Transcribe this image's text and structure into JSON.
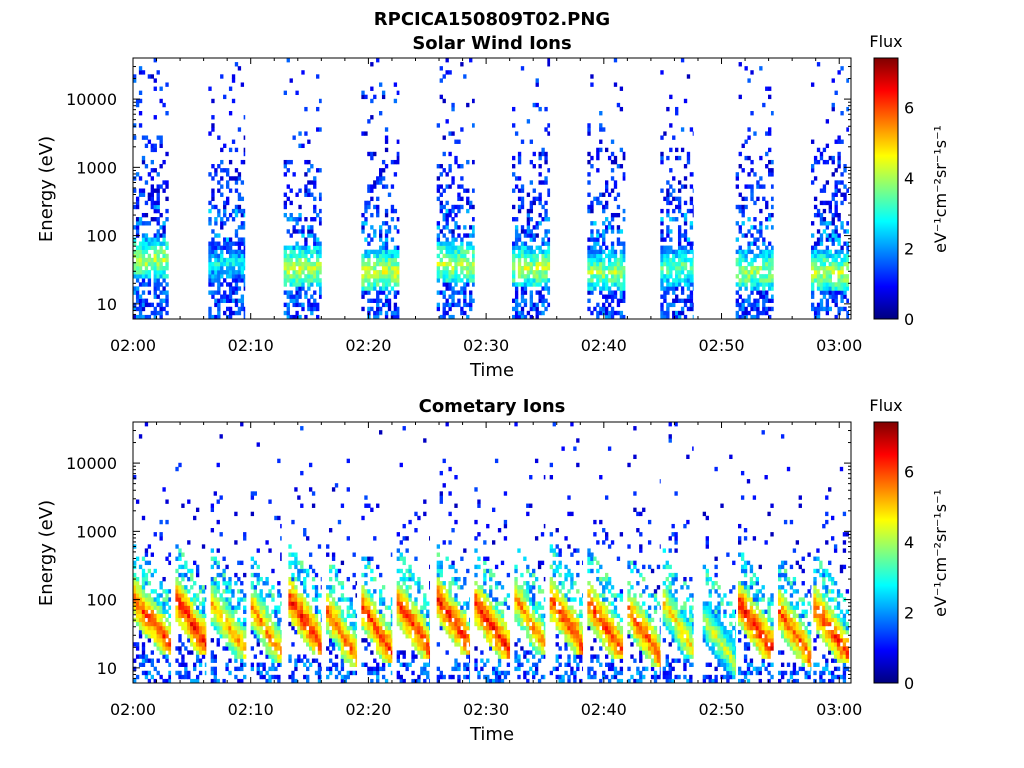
{
  "figure_title": "RPCICA150809T02.PNG",
  "panels": [
    {
      "title": "Solar Wind Ions",
      "xlabel": "Time",
      "ylabel": "Energy (eV)",
      "colorbar": {
        "label_top": "Flux",
        "unit": "eV⁻¹cm⁻²sr⁻¹s⁻¹",
        "ticks": [
          "0",
          "2",
          "4",
          "6"
        ]
      }
    },
    {
      "title": "Cometary Ions",
      "xlabel": "Time",
      "ylabel": "Energy (eV)",
      "colorbar": {
        "label_top": "Flux",
        "unit": "eV⁻¹cm⁻²sr⁻¹s⁻¹",
        "ticks": [
          "0",
          "2",
          "4",
          "6"
        ]
      }
    }
  ],
  "colormap": "jet",
  "chart_data": [
    {
      "type": "heatmap",
      "title": "Solar Wind Ions",
      "xlabel": "Time",
      "ylabel": "Energy (eV)",
      "x_ticks": [
        "02:00",
        "02:10",
        "02:20",
        "02:30",
        "02:40",
        "02:50",
        "03:00"
      ],
      "x_tick_minutes": [
        0,
        10,
        20,
        30,
        40,
        50,
        60
      ],
      "xlim_minutes": [
        0,
        61
      ],
      "y_ticks": [
        "10",
        "100",
        "1000",
        "10000"
      ],
      "y_tick_values": [
        10,
        100,
        1000,
        10000
      ],
      "y_scale": "log",
      "ylim": [
        6,
        40000
      ],
      "clim": [
        0,
        7.4
      ],
      "colorbar_ticks": [
        0,
        2,
        4,
        6
      ],
      "colorbar_label": "eV⁻¹cm⁻²sr⁻¹s⁻¹",
      "bursts": [
        {
          "start_min": 0.0,
          "end_min": 3.0,
          "peak_min": 1.5,
          "peak_energy_ev": 45,
          "peak_flux": 4.8
        },
        {
          "start_min": 6.4,
          "end_min": 9.5,
          "peak_min": 8.5,
          "peak_energy_ev": 40,
          "peak_flux": 3.5
        },
        {
          "start_min": 12.8,
          "end_min": 16.0,
          "peak_min": 15.0,
          "peak_energy_ev": 35,
          "peak_flux": 4.8
        },
        {
          "start_min": 19.4,
          "end_min": 22.6,
          "peak_min": 21.5,
          "peak_energy_ev": 30,
          "peak_flux": 4.9
        },
        {
          "start_min": 25.8,
          "end_min": 29.0,
          "peak_min": 27.5,
          "peak_energy_ev": 40,
          "peak_flux": 4.8
        },
        {
          "start_min": 32.2,
          "end_min": 35.4,
          "peak_min": 34.0,
          "peak_energy_ev": 35,
          "peak_flux": 4.8
        },
        {
          "start_min": 38.6,
          "end_min": 41.8,
          "peak_min": 40.5,
          "peak_energy_ev": 30,
          "peak_flux": 4.6
        },
        {
          "start_min": 44.8,
          "end_min": 47.6,
          "peak_min": 47.0,
          "peak_energy_ev": 35,
          "peak_flux": 4.2
        },
        {
          "start_min": 51.2,
          "end_min": 54.4,
          "peak_min": 53.5,
          "peak_energy_ev": 30,
          "peak_flux": 4.6
        },
        {
          "start_min": 57.6,
          "end_min": 60.8,
          "peak_min": 59.5,
          "peak_energy_ev": 30,
          "peak_flux": 4.8
        }
      ]
    },
    {
      "type": "heatmap",
      "title": "Cometary Ions",
      "xlabel": "Time",
      "ylabel": "Energy (eV)",
      "x_ticks": [
        "02:00",
        "02:10",
        "02:20",
        "02:30",
        "02:40",
        "02:50",
        "03:00"
      ],
      "x_tick_minutes": [
        0,
        10,
        20,
        30,
        40,
        50,
        60
      ],
      "xlim_minutes": [
        0,
        61
      ],
      "y_ticks": [
        "10",
        "100",
        "1000",
        "10000"
      ],
      "y_tick_values": [
        10,
        100,
        1000,
        10000
      ],
      "y_scale": "log",
      "ylim": [
        6,
        40000
      ],
      "clim": [
        0,
        7.4
      ],
      "colorbar_ticks": [
        0,
        2,
        4,
        6
      ],
      "colorbar_label": "eV⁻¹cm⁻²sr⁻¹s⁻¹",
      "bursts": [
        {
          "start_min": 0.0,
          "end_min": 3.2,
          "peak_min": 1.5,
          "peak_energy_ev": 40,
          "peak_flux": 6.5
        },
        {
          "start_min": 3.6,
          "end_min": 6.2,
          "peak_min": 5.0,
          "peak_energy_ev": 40,
          "peak_flux": 6.8
        },
        {
          "start_min": 6.6,
          "end_min": 9.6,
          "peak_min": 8.0,
          "peak_energy_ev": 35,
          "peak_flux": 5.8
        },
        {
          "start_min": 10.0,
          "end_min": 12.6,
          "peak_min": 11.5,
          "peak_energy_ev": 30,
          "peak_flux": 6.0
        },
        {
          "start_min": 13.2,
          "end_min": 16.0,
          "peak_min": 15.0,
          "peak_energy_ev": 40,
          "peak_flux": 6.8
        },
        {
          "start_min": 16.4,
          "end_min": 19.0,
          "peak_min": 18.0,
          "peak_energy_ev": 25,
          "peak_flux": 6.2
        },
        {
          "start_min": 19.4,
          "end_min": 22.0,
          "peak_min": 21.0,
          "peak_energy_ev": 30,
          "peak_flux": 6.6
        },
        {
          "start_min": 22.4,
          "end_min": 25.2,
          "peak_min": 24.0,
          "peak_energy_ev": 35,
          "peak_flux": 6.6
        },
        {
          "start_min": 25.8,
          "end_min": 28.6,
          "peak_min": 27.5,
          "peak_energy_ev": 40,
          "peak_flux": 6.8
        },
        {
          "start_min": 29.0,
          "end_min": 32.0,
          "peak_min": 30.5,
          "peak_energy_ev": 35,
          "peak_flux": 6.8
        },
        {
          "start_min": 32.4,
          "end_min": 35.0,
          "peak_min": 34.0,
          "peak_energy_ev": 40,
          "peak_flux": 6.0
        },
        {
          "start_min": 35.4,
          "end_min": 38.2,
          "peak_min": 37.0,
          "peak_energy_ev": 40,
          "peak_flux": 6.6
        },
        {
          "start_min": 38.6,
          "end_min": 41.6,
          "peak_min": 40.5,
          "peak_energy_ev": 35,
          "peak_flux": 6.6
        },
        {
          "start_min": 42.0,
          "end_min": 44.8,
          "peak_min": 43.5,
          "peak_energy_ev": 25,
          "peak_flux": 6.4
        },
        {
          "start_min": 45.0,
          "end_min": 47.6,
          "peak_min": 46.5,
          "peak_energy_ev": 35,
          "peak_flux": 5.4
        },
        {
          "start_min": 48.4,
          "end_min": 51.2,
          "peak_min": 49.5,
          "peak_energy_ev": 20,
          "peak_flux": 4.8
        },
        {
          "start_min": 51.4,
          "end_min": 54.4,
          "peak_min": 53.0,
          "peak_energy_ev": 35,
          "peak_flux": 6.8
        },
        {
          "start_min": 54.8,
          "end_min": 57.6,
          "peak_min": 56.5,
          "peak_energy_ev": 25,
          "peak_flux": 6.4
        },
        {
          "start_min": 57.8,
          "end_min": 60.8,
          "peak_min": 59.5,
          "peak_energy_ev": 30,
          "peak_flux": 6.6
        }
      ]
    }
  ]
}
